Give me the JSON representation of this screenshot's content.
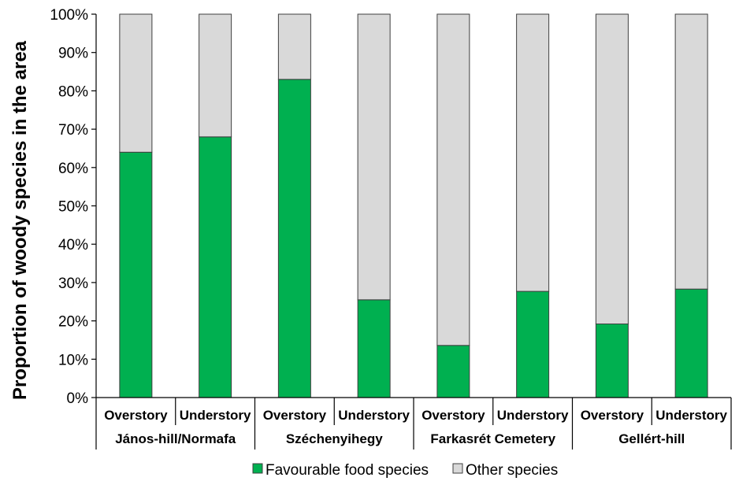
{
  "colors": {
    "favourable": "#00b050",
    "other": "#d9d9d9",
    "bar_stroke": "#404040",
    "axis": "#000000"
  },
  "chart_data": {
    "type": "bar",
    "stacked": true,
    "percent_axis": true,
    "ylabel": "Proportion of woody species in the area",
    "ylim": [
      0,
      100
    ],
    "y_ticks": [
      "0%",
      "10%",
      "20%",
      "30%",
      "40%",
      "50%",
      "60%",
      "70%",
      "80%",
      "90%",
      "100%"
    ],
    "categories": [
      "Overstory",
      "Understory",
      "Overstory",
      "Understory",
      "Overstory",
      "Understory",
      "Overstory",
      "Understory"
    ],
    "groups": [
      "János-hill/Normafa",
      "Széchenyihegy",
      "Farkasrét Cemetery",
      "Gellért-hill"
    ],
    "series": [
      {
        "name": "Favourable food species",
        "values": [
          64,
          68,
          83,
          25.5,
          13.6,
          27.7,
          19.2,
          28.3
        ]
      },
      {
        "name": "Other species",
        "values": [
          36,
          32,
          17,
          74.5,
          86.4,
          72.3,
          80.8,
          71.7
        ]
      }
    ],
    "legend_position": "bottom",
    "grid": false
  }
}
